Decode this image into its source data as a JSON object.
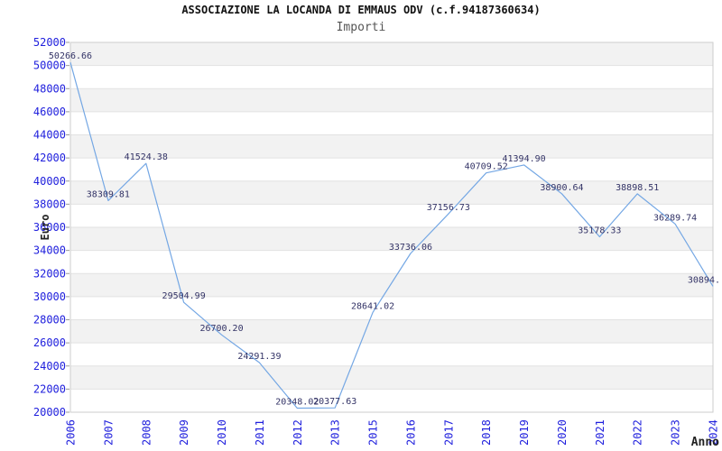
{
  "chart_data": {
    "type": "line",
    "title": "ASSOCIAZIONE LA LOCANDA DI EMMAUS ODV (c.f.94187360634)",
    "subtitle": "Importi",
    "xlabel": "Anno",
    "ylabel": "Euro",
    "x_labels": [
      "2006",
      "2007",
      "2008",
      "2009",
      "2010",
      "2011",
      "2012",
      "2013",
      "2015",
      "2016",
      "2017",
      "2018",
      "2019",
      "2020",
      "2021",
      "2022",
      "2023",
      "2024"
    ],
    "values": [
      50266.66,
      38309.81,
      41524.38,
      29504.99,
      26700.2,
      24291.39,
      20348.02,
      20377.63,
      28641.02,
      33736.06,
      37156.73,
      40709.52,
      41394.9,
      38900.64,
      35178.33,
      38898.51,
      36289.74,
      30894
    ],
    "point_labels": [
      "50266.66",
      "38309.81",
      "41524.38",
      "29504.99",
      "26700.20",
      "24291.39",
      "20348.02",
      "20377.63",
      "28641.02",
      "33736.06",
      "37156.73",
      "40709.52",
      "41394.90",
      "38900.64",
      "35178.33",
      "38898.51",
      "36289.74",
      "30894."
    ],
    "ylim": [
      20000,
      52000
    ],
    "ytick_step": 2000,
    "grid": true,
    "banded_background": true,
    "legend": "none",
    "colors": {
      "line": "#74a7e4",
      "axis_tick_label": "#2020dd",
      "data_label": "#333366",
      "band": "#f2f2f2",
      "gridline": "#e2e2e2",
      "plot_border": "#cccccc",
      "tick_mark": "#999999",
      "title": "#111111",
      "subtitle": "#555555",
      "axis_title": "#222222"
    }
  }
}
